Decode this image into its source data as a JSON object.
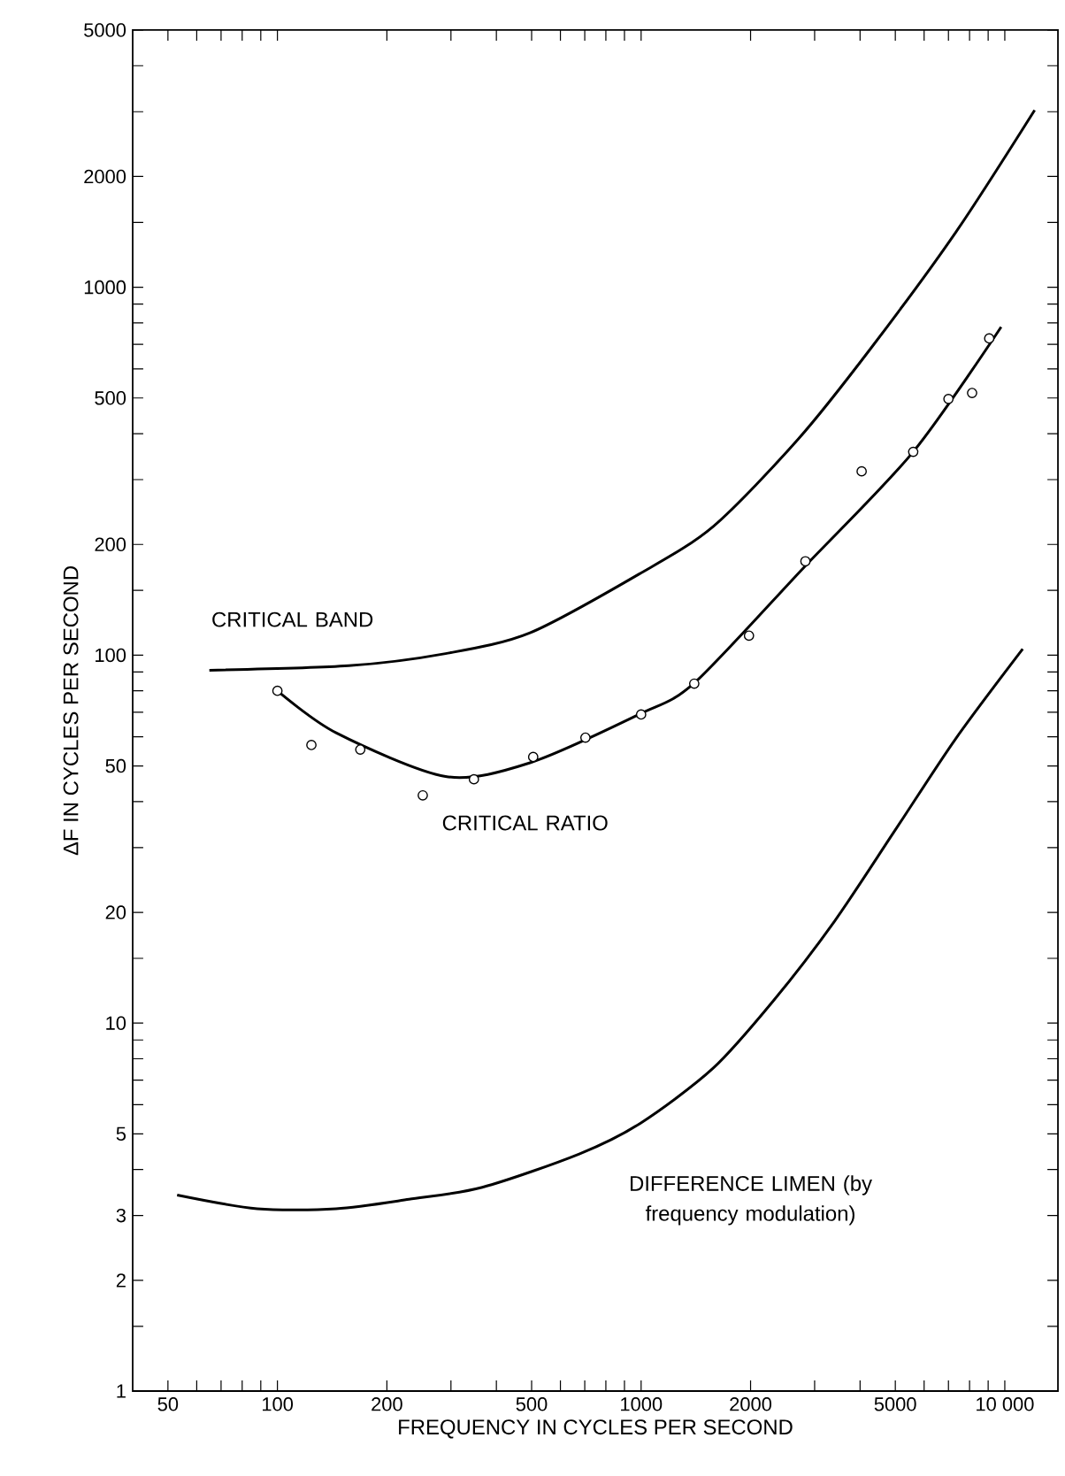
{
  "chart_data": {
    "type": "line",
    "xlabel": "FREQUENCY IN CYCLES PER SECOND",
    "ylabel": "ΔF IN CYCLES PER SECOND",
    "log": "xy",
    "xlim": [
      40,
      14000
    ],
    "ylim": [
      1,
      5000
    ],
    "xticks": [
      50,
      {
        "value": 60,
        "label": null
      },
      {
        "value": 70,
        "label": null
      },
      {
        "value": 80,
        "label": null
      },
      {
        "value": 90,
        "label": null
      },
      100,
      200,
      {
        "value": 300,
        "label": null
      },
      {
        "value": 400,
        "label": null
      },
      500,
      {
        "value": 600,
        "label": null
      },
      {
        "value": 700,
        "label": null
      },
      {
        "value": 800,
        "label": null
      },
      {
        "value": 900,
        "label": null
      },
      1000,
      2000,
      {
        "value": 3000,
        "label": null
      },
      {
        "value": 4000,
        "label": null
      },
      5000,
      {
        "value": 6000,
        "label": null
      },
      {
        "value": 7000,
        "label": null
      },
      {
        "value": 8000,
        "label": null
      },
      {
        "value": 9000,
        "label": null
      },
      {
        "value": 10000,
        "label": "10 000"
      }
    ],
    "yticks": [
      1,
      {
        "value": 1.5,
        "label": null
      },
      2,
      3,
      {
        "value": 4,
        "label": null
      },
      5,
      {
        "value": 6,
        "label": null
      },
      {
        "value": 7,
        "label": null
      },
      {
        "value": 8,
        "label": null
      },
      {
        "value": 9,
        "label": null
      },
      10,
      {
        "value": 15,
        "label": null
      },
      20,
      {
        "value": 30,
        "label": null
      },
      {
        "value": 40,
        "label": null
      },
      50,
      {
        "value": 60,
        "label": null
      },
      {
        "value": 70,
        "label": null
      },
      {
        "value": 80,
        "label": null
      },
      {
        "value": 90,
        "label": null
      },
      100,
      {
        "value": 150,
        "label": null
      },
      200,
      {
        "value": 300,
        "label": null
      },
      {
        "value": 400,
        "label": null
      },
      500,
      {
        "value": 600,
        "label": null
      },
      {
        "value": 700,
        "label": null
      },
      {
        "value": 800,
        "label": null
      },
      {
        "value": 900,
        "label": null
      },
      1000,
      {
        "value": 1500,
        "label": null
      },
      2000,
      {
        "value": 3000,
        "label": null
      },
      {
        "value": 4000,
        "label": null
      },
      5000
    ],
    "series": [
      {
        "name": "CRITICAL BAND",
        "color": "#000000",
        "x": [
          65,
          157,
          290,
          495,
          986,
          1580,
          2700,
          4280,
          7330,
          12080
        ],
        "values": [
          91,
          93.6,
          101,
          115,
          166,
          224,
          386,
          682,
          1410,
          3030
        ]
      },
      {
        "name": "CRITICAL RATIO",
        "color": "#000000",
        "x": [
          100,
          145,
          290,
          495,
          986,
          1400,
          2800,
          5600,
          9770
        ],
        "values": [
          80,
          61.5,
          46.8,
          51,
          69,
          84,
          173,
          357,
          780
        ]
      },
      {
        "type": "scatter",
        "marker": "circle",
        "color": "#000000",
        "x": [
          100,
          124,
          169,
          251,
          347,
          505,
          703,
          1000,
          1400,
          1980,
          2830,
          4040,
          5600,
          7000,
          8130,
          9060
        ],
        "values": [
          80,
          57,
          55.4,
          41.6,
          46,
          52.9,
          59.7,
          69,
          83.7,
          113,
          180,
          316,
          357,
          497,
          516,
          726
        ]
      },
      {
        "name": "DIFFERENCE LIMEN (by frequency modulation)",
        "color": "#000000",
        "x": [
          53,
          88,
          145,
          230,
          366,
          676,
          997,
          1575,
          2310,
          3400,
          4990,
          7330,
          11200
        ],
        "values": [
          3.41,
          3.13,
          3.13,
          3.32,
          3.58,
          4.41,
          5.35,
          7.53,
          11.5,
          18.9,
          33.4,
          59.3,
          104
        ]
      }
    ]
  }
}
